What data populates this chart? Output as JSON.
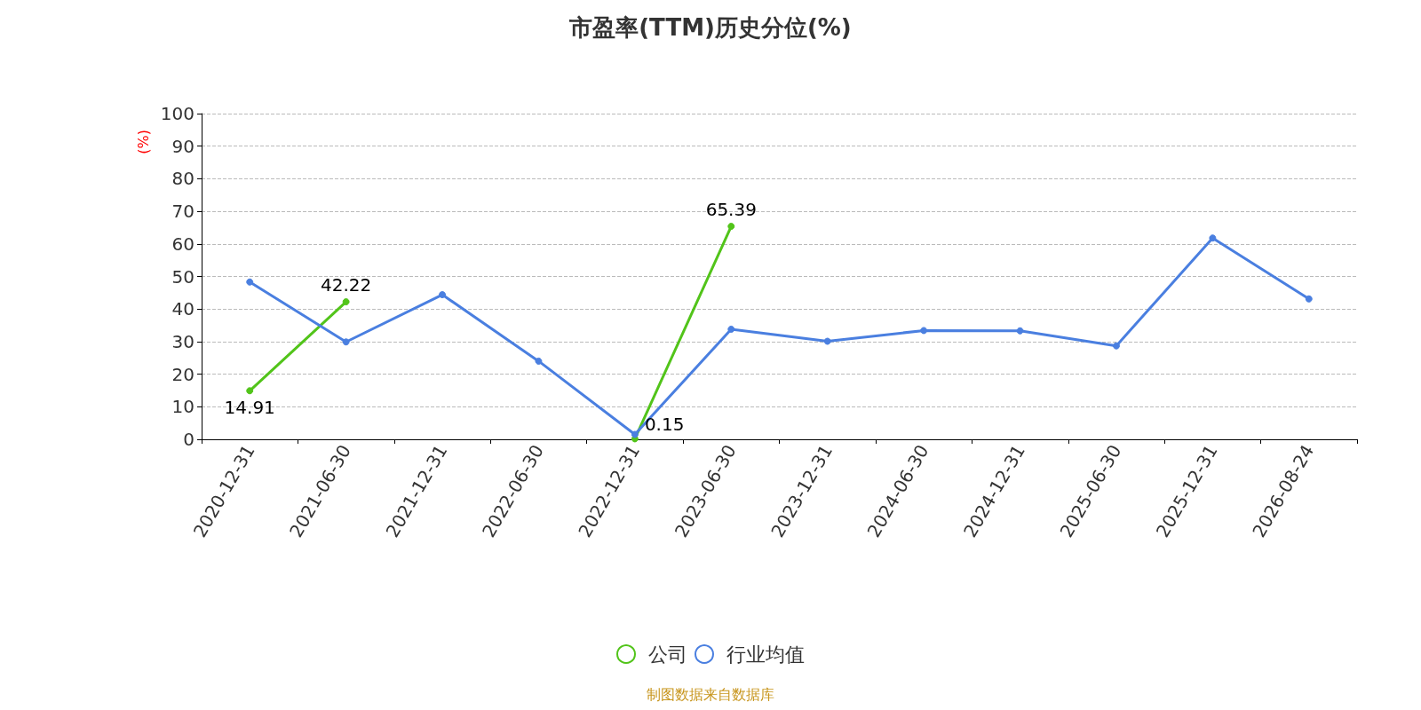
{
  "chart_data": {
    "type": "line",
    "title": "市盈率(TTM)历史分位(%)",
    "ylabel": "(%)",
    "categories": [
      "2020-12-31",
      "2021-06-30",
      "2021-12-31",
      "2022-06-30",
      "2022-12-31",
      "2023-06-30",
      "2023-12-31",
      "2024-06-30",
      "2024-12-31",
      "2025-06-30",
      "2025-12-31",
      "2026-08-24"
    ],
    "series": [
      {
        "name": "公司",
        "color": "#52c41a",
        "values": [
          14.91,
          42.22,
          null,
          null,
          0.15,
          65.39,
          null,
          null,
          null,
          null,
          null,
          null
        ],
        "value_labels": [
          "14.91",
          "42.22",
          null,
          null,
          "0.15",
          "65.39",
          null,
          null,
          null,
          null,
          null,
          null
        ]
      },
      {
        "name": "行业均值",
        "color": "#4a7fe0",
        "values": [
          48.3,
          29.9,
          44.4,
          24.0,
          1.5,
          33.8,
          30.1,
          33.4,
          33.3,
          28.7,
          61.8,
          43.1
        ]
      }
    ],
    "ylim": [
      0,
      100
    ],
    "yticks": [
      0,
      10,
      20,
      30,
      40,
      50,
      60,
      70,
      80,
      90,
      100
    ],
    "grid": "y",
    "legend": "bottom",
    "marker": "circle",
    "line_style": "solid",
    "annotations": [
      "制图数据来自数据库"
    ]
  }
}
